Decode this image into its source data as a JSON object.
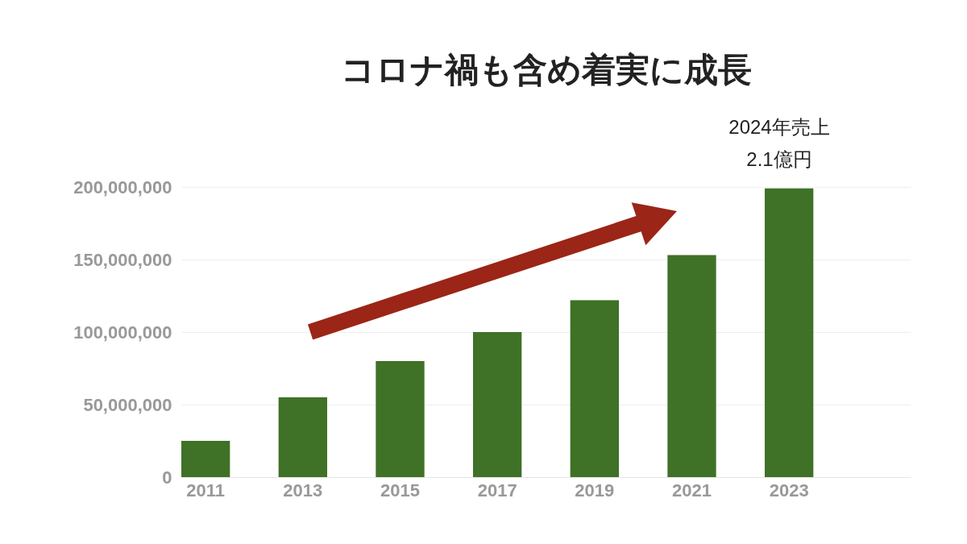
{
  "chart_data": {
    "type": "bar",
    "title": "コロナ禍も含め着実に成長",
    "categories": [
      "2011",
      "2013",
      "2015",
      "2017",
      "2019",
      "2021",
      "2023",
      null
    ],
    "values": [
      25000000,
      55000000,
      80000000,
      100000000,
      122000000,
      153000000,
      199000000,
      null
    ],
    "color": "#3f7127",
    "ylim": [
      0,
      200000000
    ],
    "yticks": [
      0,
      {
        "value": 50000000,
        "label": "50,000,000"
      },
      {
        "value": 100000000,
        "label": "100,000,000"
      },
      {
        "value": 150000000,
        "label": "150,000,000"
      },
      {
        "value": 200000000,
        "label": "200,000,000"
      }
    ],
    "grid": "y",
    "annotations": [
      "2024年売上\n2.1億円"
    ]
  }
}
